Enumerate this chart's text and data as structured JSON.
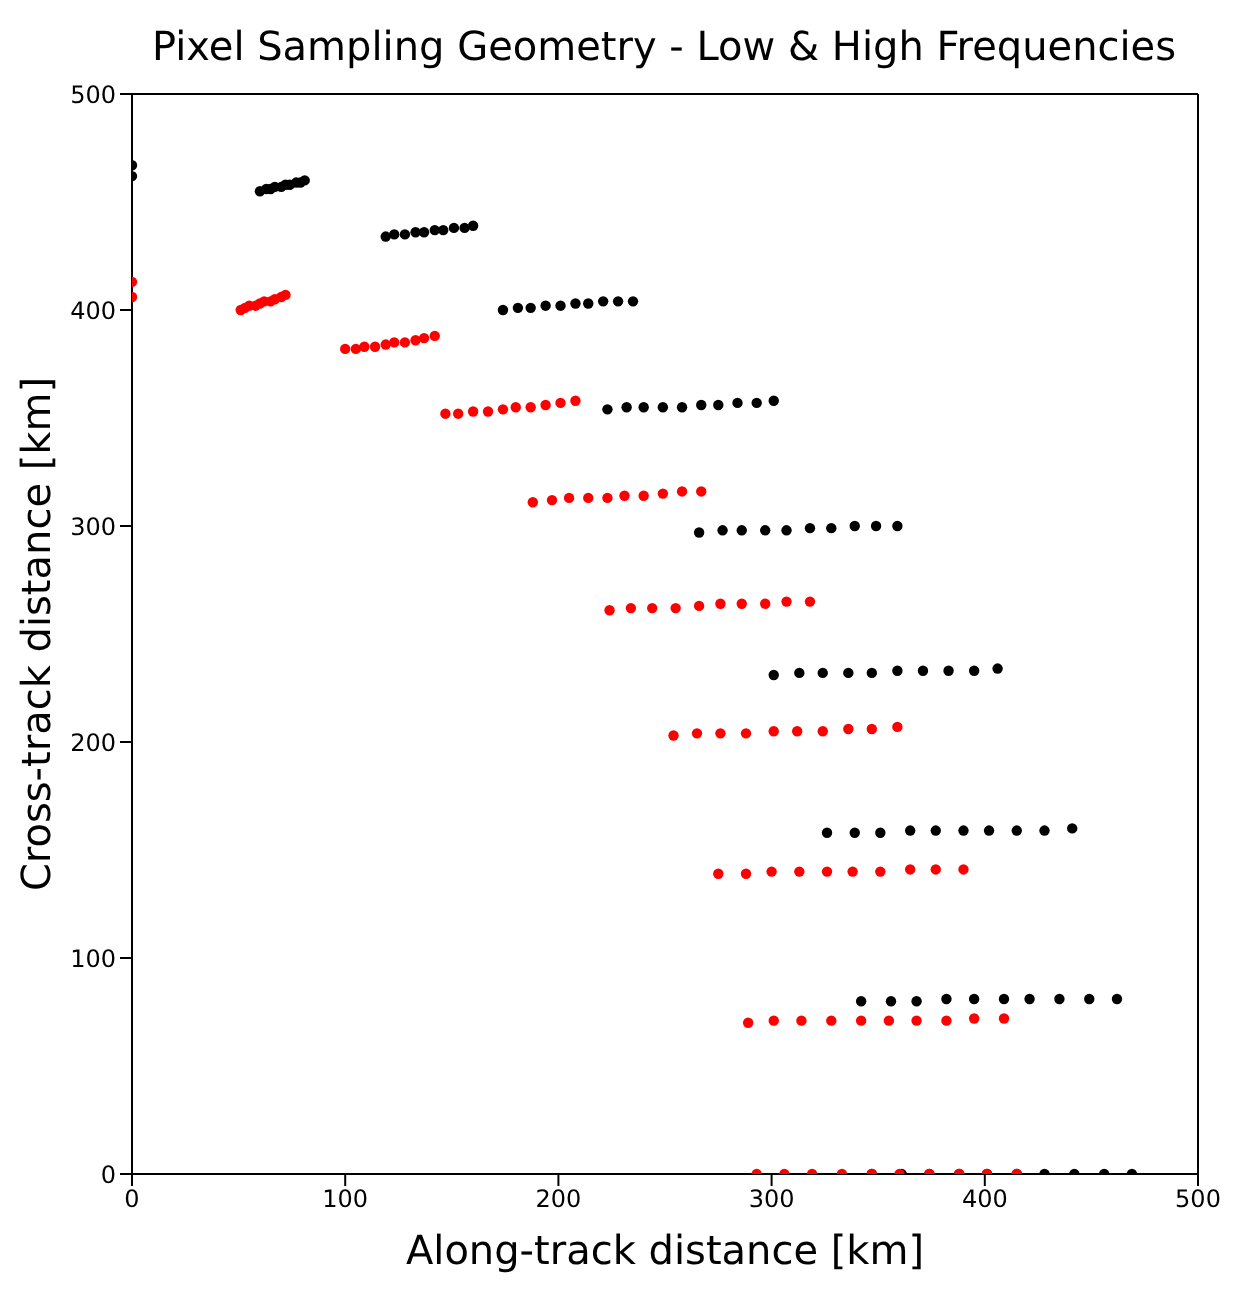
{
  "chart_data": {
    "type": "scatter",
    "title": "Pixel Sampling Geometry - Low & High Frequencies",
    "xlabel": "Along-track distance [km]",
    "ylabel": "Cross-track distance [km]",
    "xlim": [
      0,
      500
    ],
    "ylim": [
      0,
      500
    ],
    "xticks": [
      0,
      100,
      200,
      300,
      400,
      500
    ],
    "yticks": [
      0,
      100,
      200,
      300,
      400,
      500
    ],
    "legend": false,
    "marker": "circle",
    "series": [
      {
        "color": "#000000",
        "x": [
          0,
          60,
          119,
          174,
          223,
          266,
          301,
          326,
          342,
          347,
          63,
          123,
          181,
          232,
          277,
          313,
          339,
          356,
          361,
          65,
          128,
          187,
          240,
          286,
          324,
          351,
          368,
          374,
          67,
          133,
          194,
          249,
          297,
          336,
          365,
          382,
          388,
          70,
          137,
          201,
          258,
          307,
          347,
          377,
          395,
          401,
          72,
          142,
          208,
          267,
          318,
          359,
          390,
          409,
          415,
          74,
          146,
          214,
          275,
          328,
          371,
          402,
          421,
          428,
          77,
          151,
          221,
          284,
          339,
          383,
          415,
          435,
          442,
          79,
          156,
          228,
          293,
          349,
          395,
          428,
          449,
          456,
          0,
          81,
          160,
          235,
          301,
          359,
          406,
          441,
          462,
          469
        ],
        "values": [
          462,
          455,
          434,
          400,
          354,
          297,
          231,
          158,
          80,
          0,
          456,
          435,
          401,
          355,
          298,
          232,
          158,
          80,
          0,
          456,
          435,
          401,
          355,
          298,
          232,
          158,
          80,
          0,
          457,
          436,
          402,
          355,
          298,
          232,
          159,
          81,
          0,
          457,
          436,
          402,
          355,
          298,
          232,
          159,
          81,
          0,
          458,
          437,
          403,
          356,
          299,
          233,
          159,
          81,
          0,
          458,
          437,
          403,
          356,
          299,
          233,
          159,
          81,
          0,
          459,
          438,
          404,
          357,
          300,
          233,
          159,
          81,
          0,
          459,
          438,
          404,
          357,
          300,
          233,
          159,
          81,
          0,
          467,
          460,
          439,
          404,
          358,
          300,
          234,
          160,
          81,
          0
        ]
      },
      {
        "color": "#ff0000",
        "x": [
          0,
          51,
          100,
          147,
          188,
          224,
          254,
          275,
          289,
          293,
          53,
          105,
          153,
          197,
          234,
          265,
          288,
          301,
          306,
          55,
          109,
          160,
          205,
          244,
          276,
          300,
          314,
          319,
          58,
          114,
          167,
          214,
          255,
          288,
          313,
          328,
          333,
          60,
          119,
          174,
          223,
          266,
          301,
          326,
          342,
          347,
          62,
          123,
          180,
          231,
          276,
          312,
          338,
          355,
          360,
          65,
          128,
          187,
          240,
          286,
          324,
          351,
          368,
          374,
          67,
          133,
          194,
          249,
          297,
          336,
          365,
          382,
          388,
          70,
          137,
          201,
          258,
          307,
          347,
          377,
          395,
          401,
          0,
          72,
          142,
          208,
          267,
          318,
          359,
          390,
          409,
          415
        ],
        "values": [
          406,
          400,
          382,
          352,
          311,
          261,
          203,
          139,
          70,
          0,
          401,
          382,
          352,
          312,
          262,
          204,
          139,
          71,
          0,
          402,
          383,
          353,
          313,
          262,
          204,
          140,
          71,
          0,
          402,
          383,
          353,
          313,
          262,
          204,
          140,
          71,
          0,
          403,
          384,
          354,
          313,
          263,
          205,
          140,
          71,
          0,
          404,
          385,
          355,
          314,
          264,
          205,
          140,
          71,
          0,
          404,
          385,
          355,
          314,
          264,
          205,
          140,
          71,
          0,
          405,
          386,
          356,
          315,
          264,
          206,
          141,
          71,
          0,
          406,
          387,
          357,
          316,
          265,
          206,
          141,
          72,
          0,
          413,
          407,
          388,
          358,
          316,
          265,
          207,
          141,
          72,
          0
        ]
      }
    ]
  }
}
